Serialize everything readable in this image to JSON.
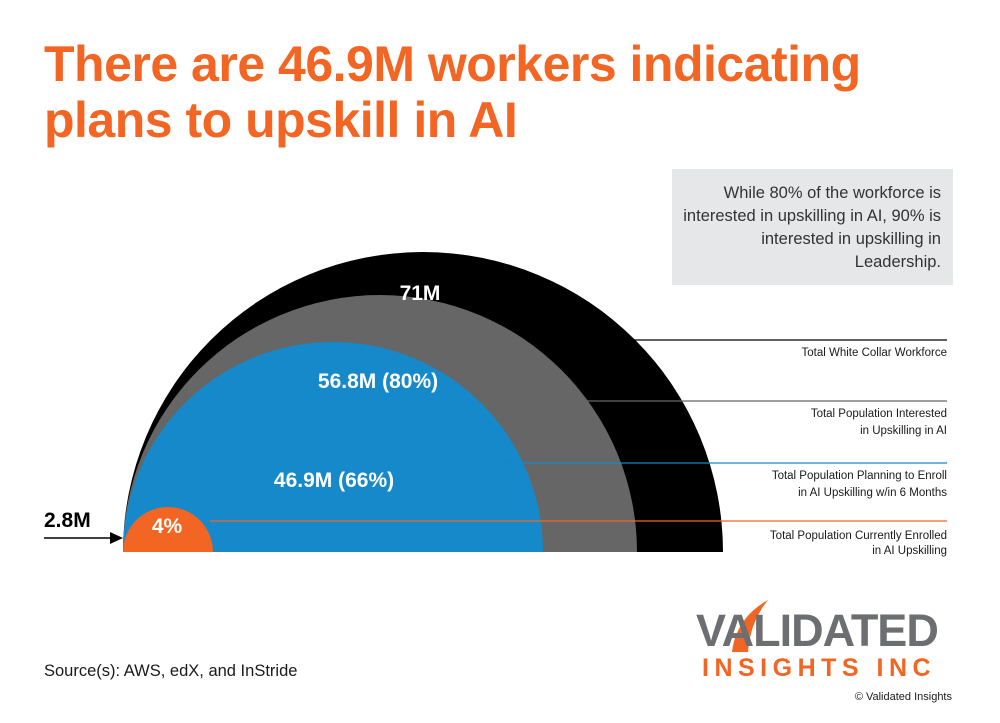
{
  "header": {
    "title": "There are 46.9M workers indicating plans to upskill in AI"
  },
  "callout": {
    "text": "While 80% of the workforce is interested in upskilling in AI, 90% is interested in upskilling in Leadership."
  },
  "chart_data": {
    "type": "nested-semicircle",
    "title": "There are 46.9M workers indicating plans to upskill in AI",
    "unit": "M",
    "series": [
      {
        "value": 71,
        "percent": null,
        "label": "71M",
        "legend_lines": [
          "Total White Collar Workforce"
        ],
        "color": "#000000"
      },
      {
        "value": 56.8,
        "percent": 80,
        "label": "56.8M (80%)",
        "legend_lines": [
          "Total Population Interested",
          "in Upskilling in AI"
        ],
        "color": "#666666"
      },
      {
        "value": 46.9,
        "percent": 66,
        "label": "46.9M (66%)",
        "legend_lines": [
          "Total Population Planning to Enroll",
          "in AI Upskilling w/in 6 Months"
        ],
        "color": "#1589c9"
      },
      {
        "value": 2.8,
        "percent": 4,
        "label": "4%",
        "legend_lines": [
          "Total Population Currently Enrolled",
          "in AI Upskilling"
        ],
        "color": "#f26522"
      }
    ],
    "pointer_label": "2.8M",
    "leader_colors": [
      "#000000",
      "#666666",
      "#1589c9",
      "#f26522"
    ]
  },
  "footer": {
    "source": "Source(s): AWS, edX, and InStride",
    "copyright": "© Validated Insights"
  },
  "logo": {
    "line1": "VALIDATED",
    "line2": "INSIGHTS INC",
    "colors": {
      "gray": "#6d6e71",
      "orange": "#f26522"
    }
  }
}
